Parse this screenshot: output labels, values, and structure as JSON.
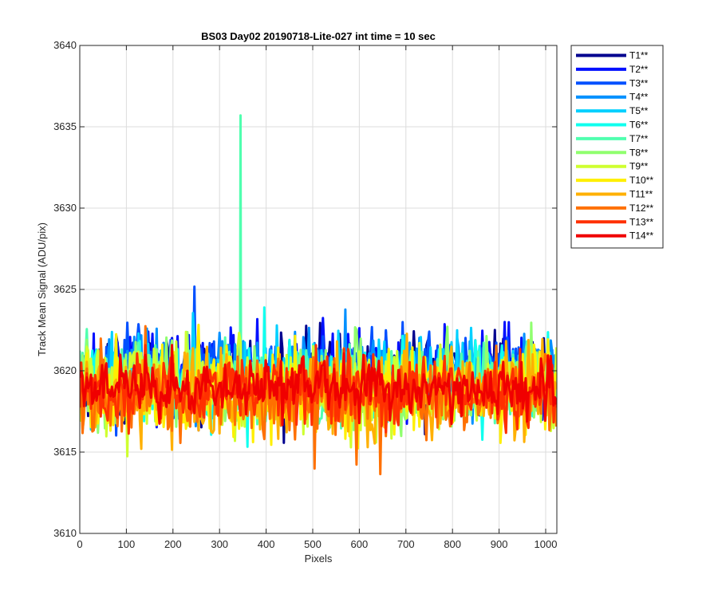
{
  "chart_data": {
    "type": "line",
    "title": "BS03 Day02 20190718-Lite-027 int time = 10 sec",
    "xlabel": "Pixels",
    "ylabel": "Track Mean Signal (ADU/pix)",
    "xlim": [
      0,
      1024
    ],
    "ylim": [
      3610,
      3640
    ],
    "xticks": [
      0,
      100,
      200,
      300,
      400,
      500,
      600,
      700,
      800,
      900,
      1000
    ],
    "yticks": [
      3610,
      3615,
      3620,
      3625,
      3630,
      3635,
      3640
    ],
    "grid": true,
    "legend_position": "outside-top-right",
    "series": [
      {
        "name": "T1**",
        "color": "#00008f",
        "center": 3619.8,
        "spread": 2.2
      },
      {
        "name": "T2**",
        "color": "#0010ff",
        "center": 3619.9,
        "spread": 2.3
      },
      {
        "name": "T3**",
        "color": "#0050ff",
        "center": 3619.8,
        "spread": 2.2
      },
      {
        "name": "T4**",
        "color": "#0090ff",
        "center": 3619.7,
        "spread": 2.2
      },
      {
        "name": "T5**",
        "color": "#00d0ff",
        "center": 3619.6,
        "spread": 2.1
      },
      {
        "name": "T6**",
        "color": "#10ffef",
        "center": 3619.4,
        "spread": 2.1
      },
      {
        "name": "T7**",
        "color": "#50ffaf",
        "center": 3619.3,
        "spread": 2.1,
        "spike": {
          "x": 345,
          "y": 3635.7
        }
      },
      {
        "name": "T8**",
        "color": "#90ff6f",
        "center": 3619.1,
        "spread": 2.2
      },
      {
        "name": "T9**",
        "color": "#cfff30",
        "center": 3618.9,
        "spread": 2.3
      },
      {
        "name": "T10**",
        "color": "#ffef00",
        "center": 3618.7,
        "spread": 2.4
      },
      {
        "name": "T11**",
        "color": "#ffb000",
        "center": 3618.5,
        "spread": 2.4
      },
      {
        "name": "T12**",
        "color": "#ff7000",
        "center": 3618.5,
        "spread": 2.3
      },
      {
        "name": "T13**",
        "color": "#ff3000",
        "center": 3618.7,
        "spread": 2.0
      },
      {
        "name": "T14**",
        "color": "#f00000",
        "center": 3618.9,
        "spread": 1.6
      }
    ]
  }
}
